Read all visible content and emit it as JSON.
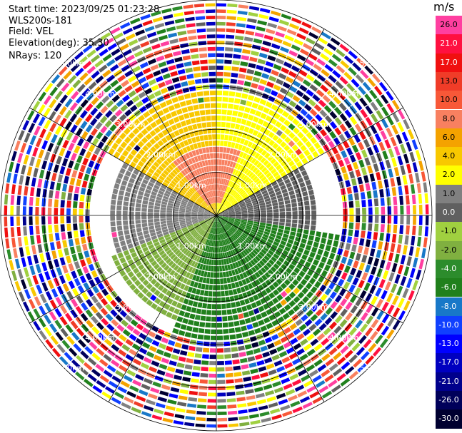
{
  "header": {
    "start_time": "Start time: 2023/09/25 01:23:28",
    "instrument": "WLS200s-181",
    "field": "Field: VEL",
    "elevation": "Elevation(deg): 35.30",
    "nrays": "NRays: 120"
  },
  "colorbar": {
    "unit": "m/s",
    "levels": [
      {
        "label": "26.0",
        "color": "#ff3fa0"
      },
      {
        "label": "21.0",
        "color": "#ff1040"
      },
      {
        "label": "17.0",
        "color": "#f01010"
      },
      {
        "label": "13.0",
        "color": "#f03c28"
      },
      {
        "label": "10.0",
        "color": "#f85838"
      },
      {
        "label": "8.0",
        "color": "#f88060"
      },
      {
        "label": "6.0",
        "color": "#f4a200"
      },
      {
        "label": "4.0",
        "color": "#f8c800"
      },
      {
        "label": "2.0",
        "color": "#ffff00"
      },
      {
        "label": "1.0",
        "color": "#808080"
      },
      {
        "label": "0.0",
        "color": "#606060"
      },
      {
        "label": "-1.0",
        "color": "#a0d040"
      },
      {
        "label": "-2.0",
        "color": "#80b040"
      },
      {
        "label": "-4.0",
        "color": "#2c8c2c"
      },
      {
        "label": "-6.0",
        "color": "#20801c"
      },
      {
        "label": "-8.0",
        "color": "#1878c8"
      },
      {
        "label": "-10.0",
        "color": "#1040ff"
      },
      {
        "label": "-13.0",
        "color": "#0000ff"
      },
      {
        "label": "-17.0",
        "color": "#0000c0"
      },
      {
        "label": "-21.0",
        "color": "#00008c"
      },
      {
        "label": "-26.0",
        "color": "#00005a"
      },
      {
        "label": "-30.0",
        "color": "#000030"
      }
    ]
  },
  "chart_data": {
    "type": "heatmap",
    "title": "",
    "projection": "polar-ppi",
    "field": "VEL",
    "units": "m/s",
    "nrays": 120,
    "elevation_deg": 35.3,
    "range_rings_km": [
      1.0,
      2.0,
      3.0,
      4.0,
      5.0
    ],
    "range_ring_labels": [
      "1.00km",
      "2.00km",
      "3.00km",
      "4.00km",
      "5.00km"
    ],
    "max_range_km": 5.0,
    "spokes_deg": [
      0,
      30,
      60,
      90,
      120,
      150,
      180,
      210,
      240,
      270,
      300,
      330
    ],
    "sectors": [
      {
        "azimuth_from": 300,
        "azimuth_to": 360,
        "range_km": [
          0.0,
          2.9
        ],
        "velocity_ms": 4.0
      },
      {
        "azimuth_from": 0,
        "azimuth_to": 60,
        "range_km": [
          0.0,
          2.9
        ],
        "velocity_ms": 2.0
      },
      {
        "azimuth_from": 60,
        "azimuth_to": 100,
        "range_km": [
          0.0,
          2.3
        ],
        "velocity_ms": 0.0
      },
      {
        "azimuth_from": 100,
        "azimuth_to": 200,
        "range_km": [
          0.0,
          3.0
        ],
        "velocity_ms": -6.0
      },
      {
        "azimuth_from": 200,
        "azimuth_to": 250,
        "range_km": [
          0.0,
          2.7
        ],
        "velocity_ms": -2.0
      },
      {
        "azimuth_from": 250,
        "azimuth_to": 300,
        "range_km": [
          0.0,
          2.5
        ],
        "velocity_ms": 1.0
      },
      {
        "azimuth_from": 320,
        "azimuth_to": 20,
        "range_km": [
          0.3,
          1.6
        ],
        "velocity_ms": 8.0
      }
    ],
    "outer_noise": {
      "range_km": [
        3.0,
        5.0
      ],
      "description": "random velocity values across the full color scale"
    },
    "grid": true
  }
}
